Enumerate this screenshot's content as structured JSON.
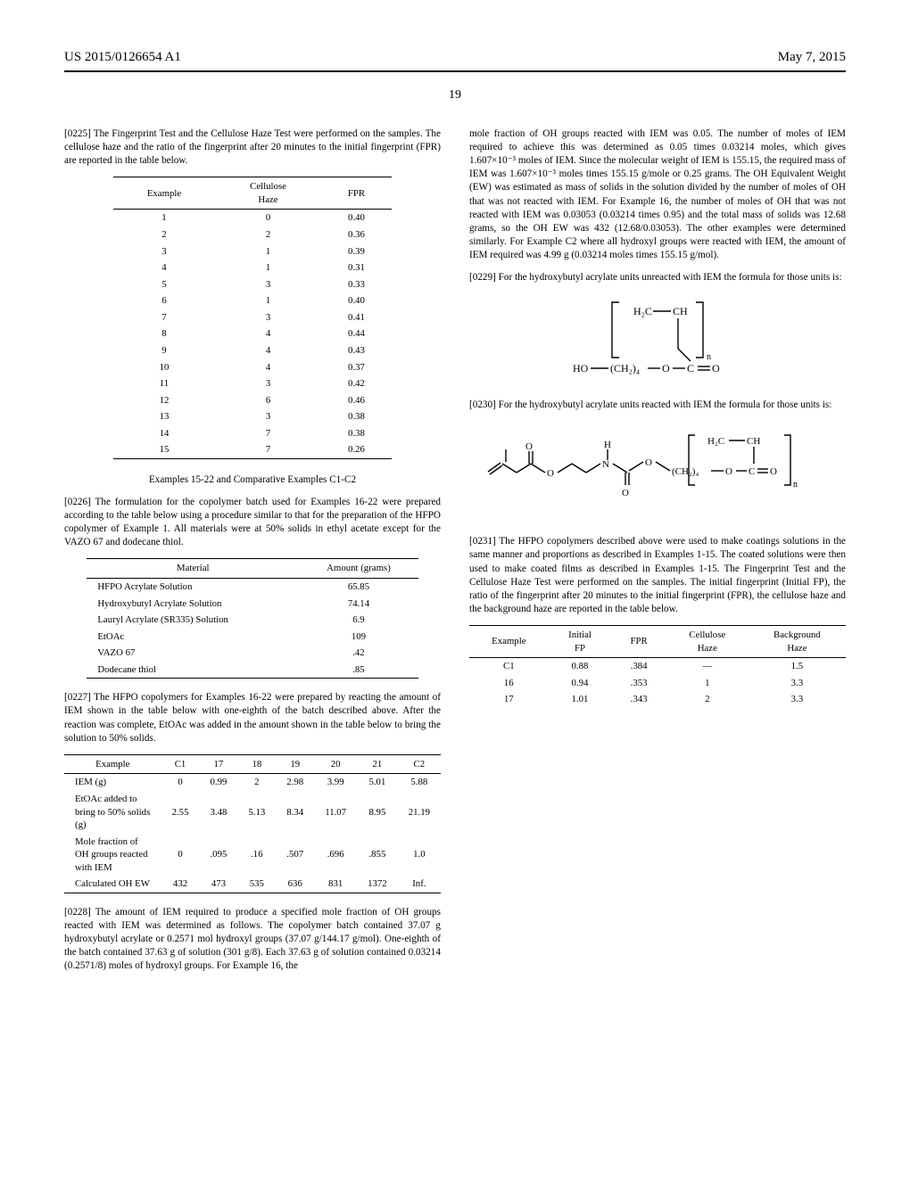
{
  "header": {
    "pub_number": "US 2015/0126654 A1",
    "pub_date": "May 7, 2015",
    "page_number": "19"
  },
  "col_left": {
    "p0225": "[0225]   The Fingerprint Test and the Cellulose Haze Test were performed on the samples. The cellulose haze and the ratio of the fingerprint after 20 minutes to the initial fingerprint (FPR) are reported in the table below.",
    "table_haze": {
      "headers": [
        "Example",
        "Cellulose\nHaze",
        "FPR"
      ],
      "rows": [
        [
          "1",
          "0",
          "0.40"
        ],
        [
          "2",
          "2",
          "0.36"
        ],
        [
          "3",
          "1",
          "0.39"
        ],
        [
          "4",
          "1",
          "0.31"
        ],
        [
          "5",
          "3",
          "0.33"
        ],
        [
          "6",
          "1",
          "0.40"
        ],
        [
          "7",
          "3",
          "0.41"
        ],
        [
          "8",
          "4",
          "0.44"
        ],
        [
          "9",
          "4",
          "0.43"
        ],
        [
          "10",
          "4",
          "0.37"
        ],
        [
          "11",
          "3",
          "0.42"
        ],
        [
          "12",
          "6",
          "0.46"
        ],
        [
          "13",
          "3",
          "0.38"
        ],
        [
          "14",
          "7",
          "0.38"
        ],
        [
          "15",
          "7",
          "0.26"
        ]
      ]
    },
    "examples_title": "Examples 15-22 and Comparative Examples C1-C2",
    "p0226": "[0226]   The formulation for the copolymer batch used for Examples 16-22 were prepared according to the table below using a procedure similar to that for the preparation of the HFPO copolymer of Example 1. All materials were at 50% solids in ethyl acetate except for the VAZO 67 and dodecane thiol.",
    "table_materials": {
      "headers": [
        "Material",
        "Amount (grams)"
      ],
      "rows": [
        [
          "HFPO Acrylate Solution",
          "65.85"
        ],
        [
          "Hydroxybutyl Acrylate Solution",
          "74.14"
        ],
        [
          "Lauryl Acrylate (SR335) Solution",
          "6.9"
        ],
        [
          "EtOAc",
          "109"
        ],
        [
          "VAZO 67",
          ".42"
        ],
        [
          "Dodecane thiol",
          ".85"
        ]
      ]
    },
    "p0227": "[0227]   The HFPO copolymers for Examples 16-22 were prepared by reacting the amount of IEM shown in the table below with one-eighth of the batch described above. After the reaction was complete, EtOAc was added in the amount shown in the table below to bring the solution to 50% solids.",
    "table_molefrac": {
      "headers": [
        "Example",
        "C1",
        "17",
        "18",
        "19",
        "20",
        "21",
        "C2"
      ],
      "rows": [
        [
          "IEM (g)",
          "0",
          "0.99",
          "2",
          "2.98",
          "3.99",
          "5.01",
          "5.88"
        ],
        [
          "EtOAc added to bring to 50% solids (g)",
          "2.55",
          "3.48",
          "5.13",
          "8.34",
          "11.07",
          "8.95",
          "21.19"
        ],
        [
          "Mole fraction of OH groups reacted with IEM",
          "0",
          ".095",
          ".16",
          ".507",
          ".696",
          ".855",
          "1.0"
        ],
        [
          "Calculated OH EW",
          "432",
          "473",
          "535",
          "636",
          "831",
          "1372",
          "Inf."
        ]
      ]
    },
    "p0228": "[0228]   The amount of IEM required to produce a specified mole fraction of OH groups reacted with IEM was determined as follows. The copolymer batch contained 37.07 g hydroxybutyl acrylate or 0.2571 mol hydroxyl groups (37.07 g/144.17 g/mol). One-eighth of the batch contained 37.63 g of solution (301 g/8). Each 37.63 g of solution contained 0.03214 (0.2571/8) moles of hydroxyl groups. For Example 16, the"
  },
  "col_right": {
    "p0228_cont": "mole fraction of OH groups reacted with IEM was 0.05. The number of moles of IEM required to achieve this was determined as 0.05 times 0.03214 moles, which gives 1.607×10⁻³ moles of IEM. Since the molecular weight of IEM is 155.15, the required mass of IEM was 1.607×10⁻³ moles times 155.15 g/mole or 0.25 grams. The OH Equivalent Weight (EW) was estimated as mass of solids in the solution divided by the number of moles of OH that was not reacted with IEM. For Example 16, the number of moles of OH that was not reacted with IEM was 0.03053 (0.03214 times 0.95) and the total mass of solids was 12.68 grams, so the OH EW was 432 (12.68/0.03053). The other examples were determined similarly. For Example C2 where all hydroxyl groups were reacted with IEM, the amount of IEM required was 4.99 g (0.03214 moles times 155.15 g/mol).",
    "p0229": "[0229]   For the hydroxybutyl acrylate units unreacted with IEM the formula for those units is:",
    "p0230": "[0230]   For the hydroxybutyl acrylate units reacted with IEM the formula for those units is:",
    "p0231": "[0231]   The HFPO copolymers described above were used to make coatings solutions in the same manner and proportions as described in Examples 1-15. The coated solutions were then used to make coated films as described in Examples 1-15. The Fingerprint Test and the Cellulose Haze Test were performed on the samples. The initial fingerprint (Initial FP), the ratio of the fingerprint after 20 minutes to the initial fingerprint (FPR), the cellulose haze and the background haze are reported in the table below.",
    "table_final": {
      "headers": [
        "Example",
        "Initial\nFP",
        "FPR",
        "Cellulose\nHaze",
        "Background\nHaze"
      ],
      "rows": [
        [
          "C1",
          "0.88",
          ".384",
          "—",
          "1.5"
        ],
        [
          "16",
          "0.94",
          ".353",
          "1",
          "3.3"
        ],
        [
          "17",
          "1.01",
          ".343",
          "2",
          "3.3"
        ]
      ]
    }
  }
}
